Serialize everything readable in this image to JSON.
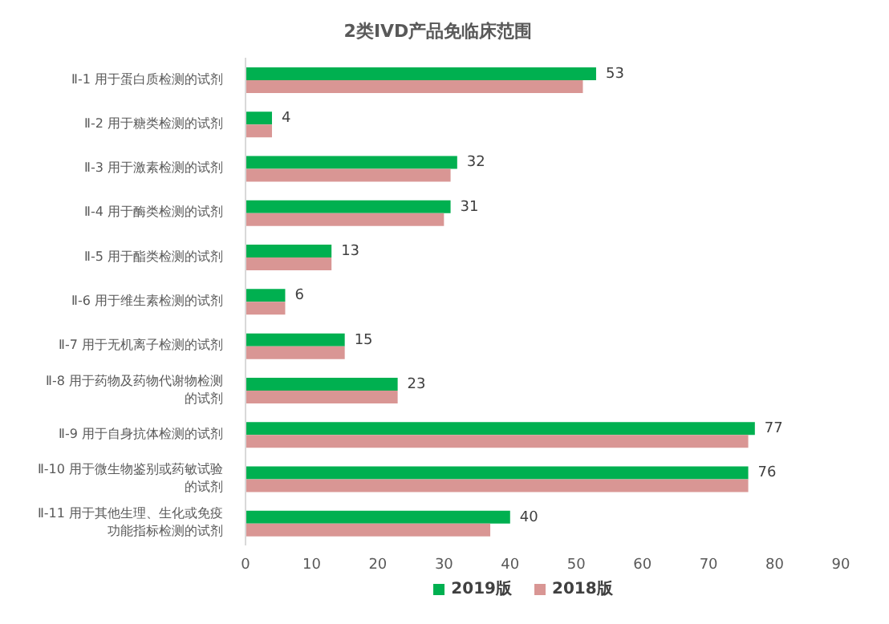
{
  "chart_data": {
    "type": "bar",
    "orientation": "horizontal",
    "title": "2类IVD产品免临床范围",
    "categories": [
      "Ⅱ-1 用于蛋白质检测的试剂",
      "Ⅱ-2 用于糖类检测的试剂",
      "Ⅱ-3 用于激素检测的试剂",
      "Ⅱ-4 用于酶类检测的试剂",
      "Ⅱ-5 用于酯类检测的试剂",
      "Ⅱ-6 用于维生素检测的试剂",
      "Ⅱ-7 用于无机离子检测的试剂",
      "Ⅱ-8 用于药物及药物代谢物检测的试剂",
      "Ⅱ-9 用于自身抗体检测的试剂",
      "Ⅱ-10 用于微生物鉴别或药敏试验的试剂",
      "Ⅱ-11 用于其他生理、生化或免疫功能指标检测的试剂"
    ],
    "series": [
      {
        "name": "2019版",
        "color": "#00b050",
        "values": [
          53,
          4,
          32,
          31,
          13,
          6,
          15,
          23,
          77,
          76,
          40
        ],
        "value_labels": [
          "53",
          "4",
          "32",
          "31",
          "13",
          "6",
          "15",
          "23",
          "77",
          "76",
          "40"
        ]
      },
      {
        "name": "2018版",
        "color": "#d99694",
        "values": [
          51,
          4,
          31,
          30,
          13,
          6,
          15,
          23,
          76,
          76,
          37
        ]
      }
    ],
    "xlim": [
      0,
      90
    ],
    "xticks": [
      0,
      10,
      20,
      30,
      40,
      50,
      60,
      70,
      80,
      90
    ],
    "legend": "bottom"
  }
}
